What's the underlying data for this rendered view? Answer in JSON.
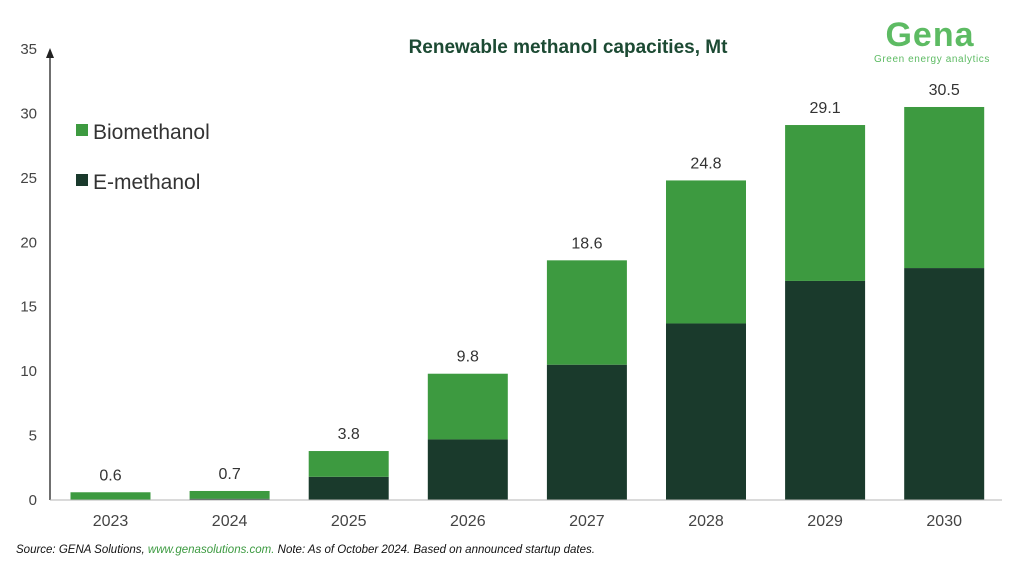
{
  "chart_data": {
    "type": "bar",
    "stacked": true,
    "title": "Renewable methanol capacities, Mt",
    "categories": [
      "2023",
      "2024",
      "2025",
      "2026",
      "2027",
      "2028",
      "2029",
      "2030"
    ],
    "series": [
      {
        "name": "E-methanol",
        "color": "#1a3a2c",
        "values": [
          0,
          0.1,
          1.8,
          4.7,
          10.5,
          13.7,
          17.0,
          18.0
        ]
      },
      {
        "name": "Biomethanol",
        "color": "#3d9a40",
        "values": [
          0.6,
          0.6,
          2.0,
          5.1,
          8.1,
          11.1,
          12.1,
          12.5
        ]
      }
    ],
    "totals": [
      "0.6",
      "0.7",
      "3.8",
      "9.8",
      "18.6",
      "24.8",
      "29.1",
      "30.5"
    ],
    "ylim": [
      0,
      35
    ],
    "yticks": [
      "0",
      "5",
      "10",
      "15",
      "20",
      "25",
      "30",
      "35"
    ],
    "legend": {
      "placement": "top-left",
      "items": [
        "Biomethanol",
        "E-methanol"
      ]
    },
    "grid": false,
    "xlabel": "",
    "ylabel": ""
  },
  "logo": {
    "word": "Gena",
    "tagline": "Green energy analytics"
  },
  "source": {
    "prefix": "Source: GENA Solutions, ",
    "link": "www.genasolutions.com.",
    "note": " Note: As of October 2024. Based on announced startup dates."
  }
}
